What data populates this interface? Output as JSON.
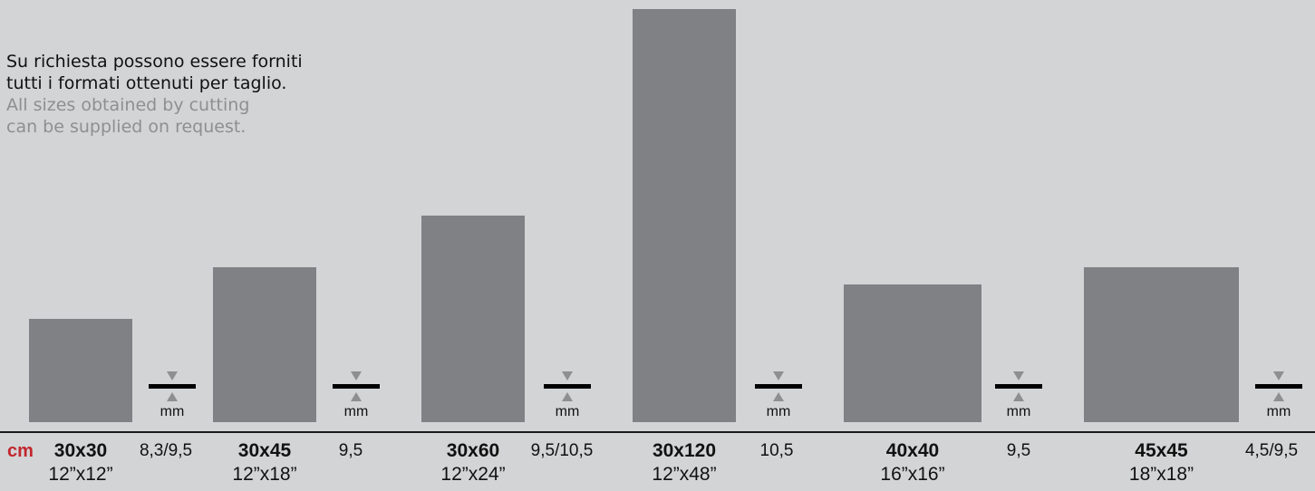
{
  "note": {
    "italian": [
      "Su richiesta possono essere forniti",
      "tutti i formati ottenuti per taglio."
    ],
    "english": [
      "All sizes obtained by cutting",
      "can be supplied on request."
    ]
  },
  "unit_label": "cm",
  "marker_label": "mm",
  "colors": {
    "tile": "#808184",
    "background": "#d3d4d6",
    "unit": "#c1272d",
    "english_text": "#8e8f91"
  },
  "formats": [
    {
      "size_cm": "30x30",
      "size_in": "12”x12”",
      "thickness_mm": "8,3/9,5",
      "width_cm": 30,
      "length_cm": 30
    },
    {
      "size_cm": "30x45",
      "size_in": "12”x18”",
      "thickness_mm": "9,5",
      "width_cm": 30,
      "length_cm": 45
    },
    {
      "size_cm": "30x60",
      "size_in": "12”x24”",
      "thickness_mm": "9,5/10,5",
      "width_cm": 30,
      "length_cm": 60
    },
    {
      "size_cm": "30x120",
      "size_in": "12”x48”",
      "thickness_mm": "10,5",
      "width_cm": 30,
      "length_cm": 120
    },
    {
      "size_cm": "40x40",
      "size_in": "16”x16”",
      "thickness_mm": "9,5",
      "width_cm": 40,
      "length_cm": 40
    },
    {
      "size_cm": "45x45",
      "size_in": "18”x18”",
      "thickness_mm": "4,5/9,5",
      "width_cm": 45,
      "length_cm": 45
    }
  ]
}
